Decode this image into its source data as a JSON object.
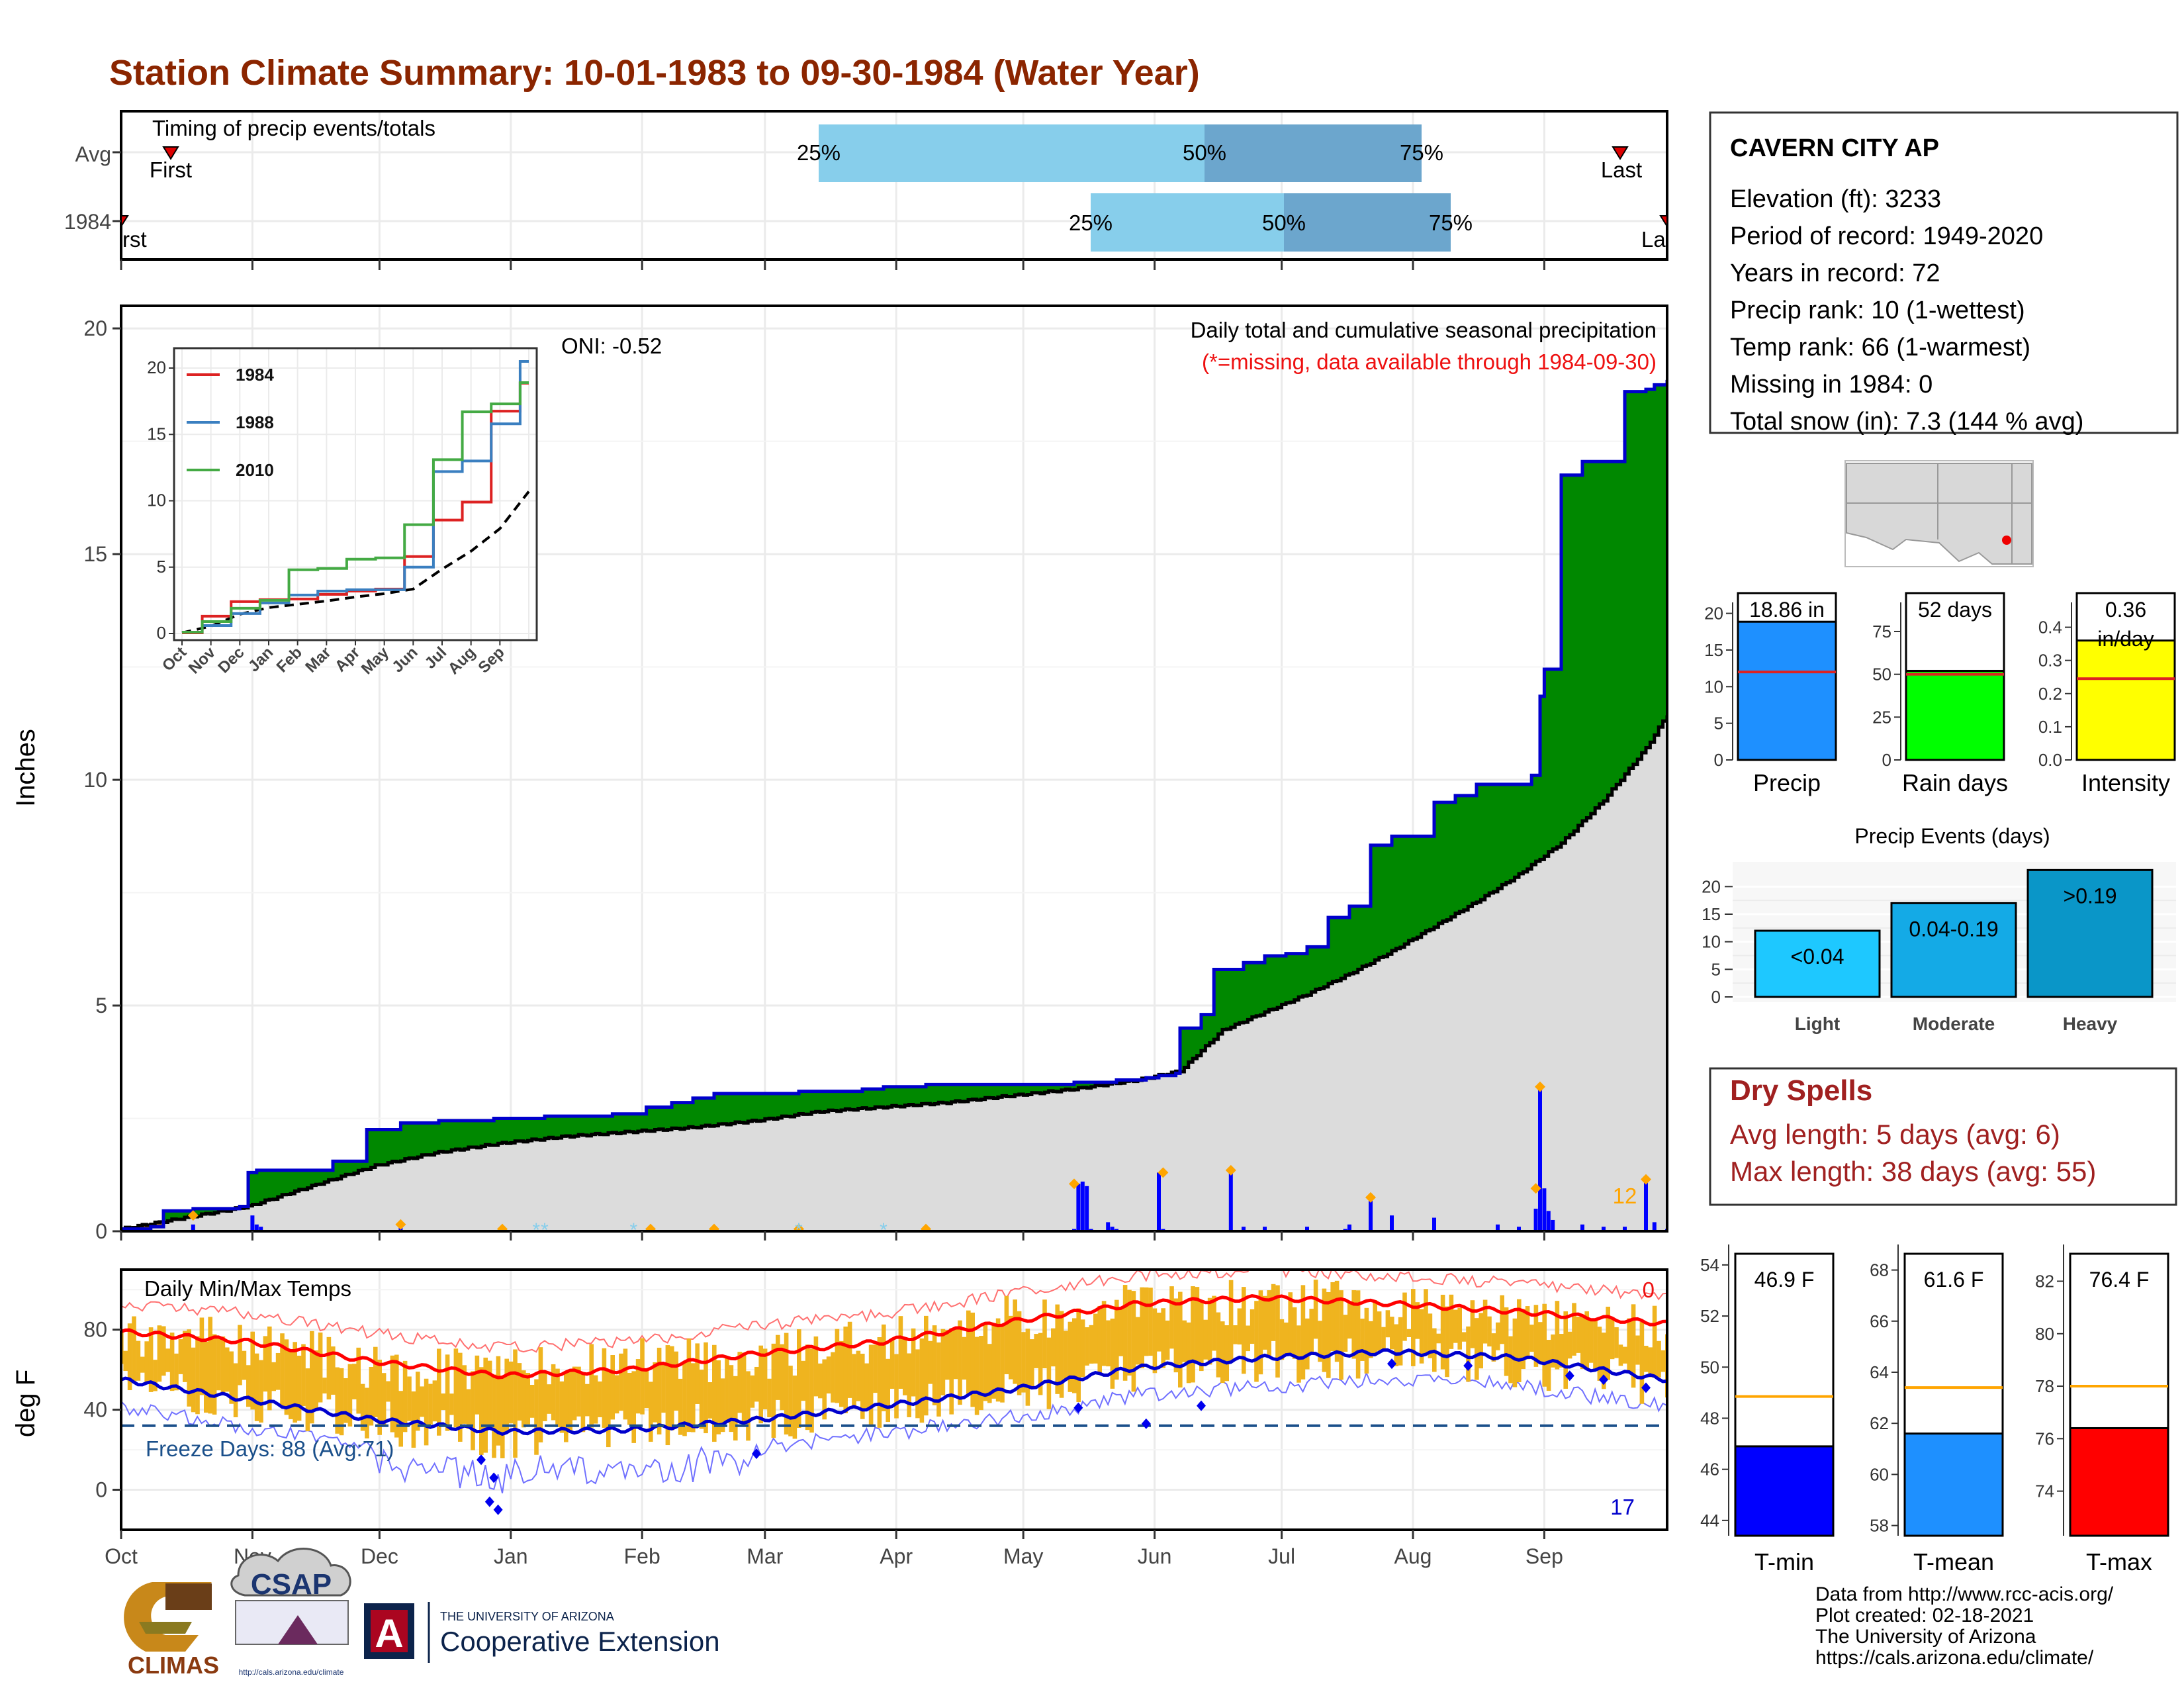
{
  "title": "Station Climate Summary: 10-01-1983 to 09-30-1984 (Water Year)",
  "months": [
    "Oct",
    "Nov",
    "Dec",
    "Jan",
    "Feb",
    "Mar",
    "Apr",
    "May",
    "Jun",
    "Jul",
    "Aug",
    "Sep"
  ],
  "timing": {
    "label": "Timing of precip events/totals",
    "rows": [
      "Avg",
      "1984"
    ],
    "first_label": "First",
    "last_label": "Last",
    "first_label_1984": "rst",
    "last_label_1984": "La",
    "q25": "25%",
    "q50": "50%",
    "q75": "75%",
    "colors": {
      "light": "#87CEEB",
      "dark": "#6CA6CD",
      "marker": "#dd0000"
    }
  },
  "precip": {
    "title": "Daily total and cumulative seasonal precipitation",
    "note": "(*=missing, data available through 1984-09-30)",
    "ylabel": "Inches",
    "oni": "ONI: -0.52",
    "max_day_count": "12",
    "yticks": [
      "0",
      "5",
      "10",
      "15",
      "20"
    ],
    "colors": {
      "above": "#008800",
      "below": "#8B5A1A",
      "avg": "#dcdcdc",
      "line": "#0000cc",
      "bars": "#0000ff",
      "max": "#FFA500"
    }
  },
  "inset": {
    "legend": [
      "1984",
      "1988",
      "2010"
    ],
    "colors": [
      "#dd2222",
      "#3a7fc0",
      "#44aa44"
    ],
    "yticks": [
      "0",
      "5",
      "10",
      "15",
      "20"
    ],
    "xticks": [
      "Oct",
      "Nov",
      "Dec",
      "Jan",
      "Feb",
      "Mar",
      "Apr",
      "May",
      "Jun",
      "Jul",
      "Aug",
      "Sep"
    ]
  },
  "temps": {
    "label": "Daily Min/Max Temps",
    "ylabel": "deg F",
    "freeze": "Freeze Days: 88 (Avg:71)",
    "top_count": "0",
    "bottom_count": "17",
    "yticks": [
      "0",
      "40",
      "80"
    ],
    "colors": {
      "bars": "#EFB41F",
      "max": "#ff0000",
      "min": "#0000cc",
      "freeze": "#1a4f8a"
    }
  },
  "station": {
    "name": "CAVERN CITY AP",
    "lines": [
      "Elevation (ft): 3233",
      "Period of record: 1949-2020",
      "Years in record: 72",
      "Precip rank: 10 (1-wettest)",
      "Temp rank: 66 (1-warmest)",
      "Missing in 1984: 0",
      "Total snow (in): 7.3 (144 % avg)"
    ]
  },
  "summary_bars": {
    "precip": {
      "value_label": "18.86 in",
      "label": "Precip",
      "yticks": [
        "0",
        "5",
        "10",
        "15",
        "20"
      ],
      "color": "#1E90FF"
    },
    "rain_days": {
      "value_label": "52 days",
      "label": "Rain days",
      "yticks": [
        "0",
        "25",
        "50",
        "75"
      ],
      "color": "#00ff00"
    },
    "intensity": {
      "value_label": "0.36",
      "unit": "in/day",
      "label": "Intensity",
      "yticks": [
        "0.0",
        "0.1",
        "0.2",
        "0.3",
        "0.4"
      ],
      "color": "#ffff00"
    }
  },
  "events": {
    "title": "Precip Events (days)",
    "yticks": [
      "0",
      "5",
      "10",
      "15",
      "20"
    ],
    "categories": [
      "Light",
      "Moderate",
      "Heavy"
    ],
    "labels": [
      "<0.04",
      "0.04-0.19",
      ">0.19"
    ],
    "colors": [
      "#1EC8FF",
      "#14AAE6",
      "#0A96C8"
    ]
  },
  "dry_spells": {
    "title": "Dry Spells",
    "avg": "Avg length: 5 days (avg: 6)",
    "max": "Max length: 38 days (avg: 55)"
  },
  "temp_bars": {
    "tmin": {
      "value_label": "46.9 F",
      "label": "T-min",
      "yticks": [
        "44",
        "46",
        "48",
        "50",
        "52",
        "54"
      ],
      "color": "#0000ff"
    },
    "tmean": {
      "value_label": "61.6 F",
      "label": "T-mean",
      "yticks": [
        "58",
        "60",
        "62",
        "64",
        "66",
        "68"
      ],
      "color": "#1E90FF"
    },
    "tmax": {
      "value_label": "76.4 F",
      "label": "T-max",
      "yticks": [
        "74",
        "76",
        "78",
        "80",
        "82"
      ],
      "color": "#ff0000"
    }
  },
  "footer": [
    "Data from http://www.rcc-acis.org/",
    "Plot created: 02-18-2021",
    "The University of Arizona",
    "https://cals.arizona.edu/climate/"
  ],
  "logos": {
    "climas": "CLIMAS",
    "csap": "CSAP",
    "csap_url": "http://cals.arizona.edu/climate",
    "ua_small": "THE UNIVERSITY OF ARIZONA",
    "ua_big": "Cooperative Extension",
    "ua_letter": "A"
  },
  "chart_data": {
    "type": "area",
    "title": "Daily total and cumulative seasonal precipitation",
    "ylabel": "Inches",
    "ylim": [
      0,
      20.5
    ],
    "x_axis": "days since 1983-10-01 (0-365)",
    "cumulative_1984": {
      "x": [
        0,
        7,
        10,
        17,
        22,
        28,
        30,
        32,
        42,
        50,
        58,
        66,
        70,
        75,
        80,
        88,
        100,
        108,
        116,
        120,
        124,
        130,
        135,
        140,
        150,
        160,
        165,
        170,
        175,
        180,
        190,
        200,
        210,
        215,
        220,
        225,
        230,
        232,
        235,
        240,
        242,
        245,
        249,
        250,
        255,
        258,
        260,
        265,
        270,
        275,
        280,
        285,
        290,
        295,
        300,
        305,
        310,
        315,
        320,
        325,
        333,
        335,
        336,
        340,
        345,
        350,
        355,
        360,
        362,
        365
      ],
      "y": [
        0.05,
        0.1,
        0.45,
        0.5,
        0.5,
        0.55,
        1.3,
        1.35,
        1.35,
        1.55,
        2.25,
        2.4,
        2.4,
        2.45,
        2.45,
        2.5,
        2.55,
        2.55,
        2.6,
        2.6,
        2.75,
        2.85,
        2.95,
        3.05,
        3.05,
        3.1,
        3.1,
        3.1,
        3.15,
        3.2,
        3.25,
        3.25,
        3.25,
        3.25,
        3.25,
        3.3,
        3.3,
        3.3,
        3.35,
        3.35,
        3.4,
        3.45,
        3.5,
        4.5,
        4.8,
        5.8,
        5.8,
        5.95,
        6.1,
        6.15,
        6.3,
        6.95,
        7.2,
        8.55,
        8.75,
        8.75,
        9.5,
        9.65,
        9.9,
        9.9,
        10.1,
        11.85,
        12.45,
        16.75,
        17.05,
        17.05,
        18.6,
        18.65,
        18.75,
        18.86
      ]
    },
    "cumulative_avg": {
      "x": [
        0,
        15,
        30,
        45,
        60,
        75,
        90,
        105,
        120,
        135,
        150,
        165,
        180,
        195,
        210,
        225,
        240,
        250,
        260,
        270,
        280,
        290,
        300,
        310,
        320,
        330,
        340,
        350,
        360,
        365
      ],
      "y": [
        0.05,
        0.3,
        0.55,
        1.0,
        1.45,
        1.75,
        1.95,
        2.1,
        2.2,
        2.3,
        2.45,
        2.65,
        2.75,
        2.85,
        3.0,
        3.15,
        3.35,
        3.55,
        4.45,
        4.85,
        5.25,
        5.7,
        6.2,
        6.75,
        7.3,
        7.9,
        8.6,
        9.55,
        10.7,
        11.45
      ]
    },
    "daily_bars": {
      "x": [
        17,
        31,
        32,
        33,
        66,
        90,
        125,
        140,
        160,
        190,
        225,
        226,
        227,
        228,
        229,
        233,
        234,
        235,
        245,
        246,
        262,
        265,
        270,
        280,
        289,
        290,
        295,
        300,
        310,
        325,
        330,
        334,
        335,
        336,
        337,
        338,
        345,
        350,
        355,
        360,
        362,
        365
      ],
      "y": [
        0.15,
        0.35,
        0.15,
        0.1,
        0.1,
        0.05,
        0.05,
        0.05,
        0.05,
        0.05,
        0.05,
        1.05,
        1.1,
        1.0,
        0.05,
        0.2,
        0.1,
        0.05,
        1.3,
        0.05,
        1.35,
        0.1,
        0.1,
        0.1,
        0.05,
        0.15,
        0.75,
        0.35,
        0.3,
        0.15,
        0.1,
        0.5,
        3.2,
        0.95,
        0.45,
        0.25,
        0.15,
        0.1,
        0.1,
        1.15,
        0.2,
        0.05
      ]
    },
    "inset": {
      "type": "line",
      "ylim": [
        0,
        20
      ],
      "series": [
        {
          "name": "1984",
          "y": [
            0.05,
            1.3,
            2.4,
            2.55,
            2.6,
            2.95,
            3.2,
            3.35,
            5.8,
            8.55,
            9.9,
            16.75,
            18.86
          ]
        },
        {
          "name": "1988",
          "y": [
            0.1,
            0.6,
            1.5,
            2.3,
            2.9,
            3.2,
            3.3,
            3.3,
            5.0,
            12.2,
            13.0,
            15.8,
            20.5
          ]
        },
        {
          "name": "2010",
          "y": [
            0.1,
            0.9,
            1.9,
            2.5,
            4.8,
            4.9,
            5.6,
            5.7,
            8.2,
            13.1,
            16.7,
            17.3,
            18.9
          ]
        }
      ],
      "avg": [
        0.05,
        0.55,
        1.45,
        1.95,
        2.2,
        2.45,
        2.75,
        3.0,
        3.35,
        4.85,
        6.2,
        7.9,
        10.7
      ]
    },
    "temps": {
      "type": "bar",
      "ylim": [
        -20,
        110
      ],
      "avg_max": {
        "x": [
          0,
          30,
          60,
          90,
          120,
          150,
          180,
          210,
          240,
          270,
          300,
          330,
          365
        ],
        "y": [
          79,
          74,
          64,
          57,
          60,
          68,
          74,
          84,
          93,
          96,
          93,
          89,
          83
        ]
      },
      "avg_min": {
        "x": [
          0,
          30,
          60,
          90,
          120,
          150,
          180,
          210,
          240,
          270,
          300,
          330,
          365
        ],
        "y": [
          55,
          45,
          35,
          29,
          30,
          35,
          42,
          50,
          61,
          66,
          69,
          66,
          55
        ]
      },
      "freeze_line": 32,
      "samples": {
        "x": [
          0,
          30,
          60,
          90,
          120,
          150,
          180,
          210,
          240,
          270,
          300,
          330,
          365
        ],
        "max": [
          76,
          74,
          62,
          58,
          64,
          66,
          76,
          86,
          92,
          94,
          92,
          86,
          80
        ],
        "min": [
          54,
          44,
          34,
          26,
          30,
          34,
          40,
          48,
          58,
          64,
          66,
          62,
          52
        ]
      }
    },
    "summary": {
      "precip_in": 18.86,
      "precip_avg": 12.0,
      "rain_days": 52,
      "rain_days_avg": 50,
      "intensity": 0.36,
      "intensity_avg": 0.245,
      "events": [
        12,
        17,
        23
      ],
      "tmin": 46.9,
      "tmin_avg": 48.85,
      "tmean": 61.6,
      "tmean_avg": 63.4,
      "tmax": 76.4,
      "tmax_avg": 78.0
    }
  }
}
